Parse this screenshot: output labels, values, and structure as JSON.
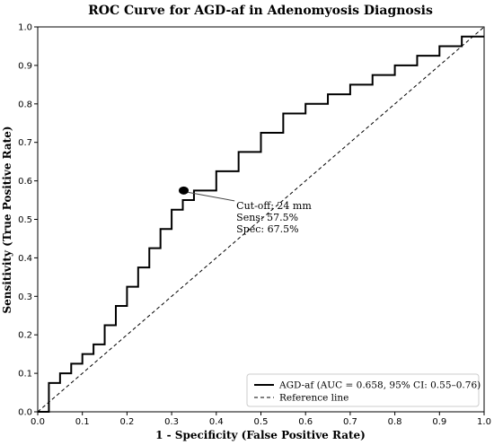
{
  "chart_data": {
    "type": "line",
    "title": "ROC Curve for AGD-af in Adenomyosis Diagnosis",
    "xlabel": "1 - Specificity (False Positive Rate)",
    "ylabel": "Sensitivity (True Positive Rate)",
    "xlim": [
      0.0,
      1.0
    ],
    "ylim": [
      0.0,
      1.0
    ],
    "x_ticks": [
      "0.0",
      "0.1",
      "0.2",
      "0.3",
      "0.4",
      "0.5",
      "0.6",
      "0.7",
      "0.8",
      "0.9",
      "1.0"
    ],
    "y_ticks": [
      "0.0",
      "0.1",
      "0.2",
      "0.3",
      "0.4",
      "0.5",
      "0.6",
      "0.7",
      "0.8",
      "0.9",
      "1.0"
    ],
    "grid": false,
    "legend_position": "lower-right",
    "series": [
      {
        "name": "AGD-af (AUC = 0.658, 95% CI: 0.55–0.76)",
        "color": "#000000",
        "style": "solid",
        "x": [
          0.0,
          0.025,
          0.025,
          0.05,
          0.05,
          0.075,
          0.075,
          0.1,
          0.1,
          0.125,
          0.125,
          0.15,
          0.15,
          0.175,
          0.175,
          0.2,
          0.2,
          0.225,
          0.225,
          0.25,
          0.25,
          0.275,
          0.275,
          0.3,
          0.3,
          0.325,
          0.325,
          0.35,
          0.35,
          0.4,
          0.4,
          0.45,
          0.45,
          0.5,
          0.5,
          0.55,
          0.55,
          0.6,
          0.6,
          0.65,
          0.65,
          0.7,
          0.7,
          0.75,
          0.75,
          0.8,
          0.8,
          0.85,
          0.85,
          0.9,
          0.9,
          0.95,
          0.95,
          1.0
        ],
        "y": [
          0.0,
          0.0,
          0.075,
          0.075,
          0.1,
          0.1,
          0.125,
          0.125,
          0.15,
          0.15,
          0.175,
          0.175,
          0.225,
          0.225,
          0.275,
          0.275,
          0.325,
          0.325,
          0.375,
          0.375,
          0.425,
          0.425,
          0.475,
          0.475,
          0.525,
          0.525,
          0.55,
          0.55,
          0.575,
          0.575,
          0.625,
          0.625,
          0.675,
          0.675,
          0.725,
          0.725,
          0.775,
          0.775,
          0.8,
          0.8,
          0.825,
          0.825,
          0.85,
          0.85,
          0.875,
          0.875,
          0.9,
          0.9,
          0.925,
          0.925,
          0.95,
          0.95,
          0.975,
          0.975
        ]
      },
      {
        "name": "Reference line",
        "color": "#000000",
        "style": "dashed",
        "x": [
          0.0,
          1.0
        ],
        "y": [
          0.0,
          1.0
        ]
      }
    ],
    "highlight_point": {
      "x": 0.325,
      "y": 0.575,
      "color": "#000000"
    },
    "annotation": {
      "lines": [
        "Cut-off: 24 mm",
        "Sens: 57.5%",
        "Spec: 67.5%"
      ],
      "anchor_x": 0.445,
      "anchor_y": 0.52
    }
  }
}
